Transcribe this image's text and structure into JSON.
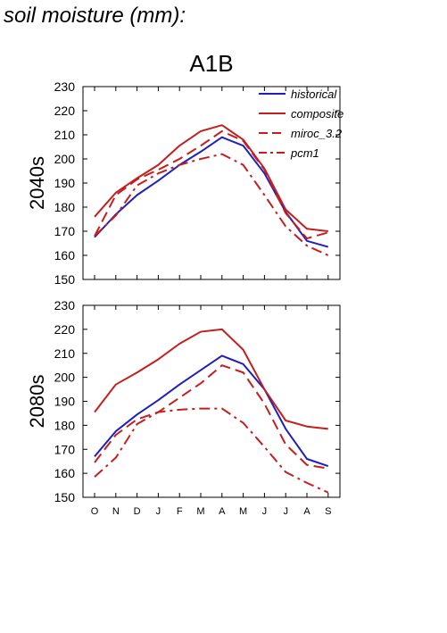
{
  "heading": "soil moisture (mm):",
  "chart_data": {
    "type": "line",
    "title": "A1B",
    "categories": [
      "O",
      "N",
      "D",
      "J",
      "F",
      "M",
      "A",
      "M",
      "J",
      "J",
      "A",
      "S"
    ],
    "ylim": [
      150,
      230
    ],
    "yticks": [
      150,
      160,
      170,
      180,
      190,
      200,
      210,
      220,
      230
    ],
    "legend_position": "top-right",
    "series_styles": [
      {
        "name": "historical",
        "color": "#1f1fbf",
        "dash": "solid"
      },
      {
        "name": "composite",
        "color": "#c41e1e",
        "dash": "solid"
      },
      {
        "name": "miroc_3.2",
        "color": "#c41e1e",
        "dash": "long-dash"
      },
      {
        "name": "pcm1",
        "color": "#c41e1e",
        "dash": "dash-dot"
      }
    ],
    "panels": [
      {
        "row_label": "2040s",
        "series": [
          {
            "name": "historical",
            "values": [
              167.5,
              177,
              185,
              191,
              197.5,
              203,
              209,
              205.5,
              194,
              178,
              166,
              163.5
            ]
          },
          {
            "name": "composite",
            "values": [
              176,
              186,
              192,
              197.5,
              205.5,
              211.5,
              214,
              208,
              196,
              179,
              171,
              170
            ]
          },
          {
            "name": "miroc_3.2",
            "values": [
              168,
              185,
              191.5,
              195.5,
              200,
              205.5,
              211.5,
              207.5,
              195.5,
              177.5,
              167,
              169.5
            ]
          },
          {
            "name": "pcm1",
            "values": [
              168,
              176.5,
              189,
              194,
              197.5,
              200,
              202,
              197.5,
              185,
              172,
              164,
              160
            ]
          }
        ]
      },
      {
        "row_label": "2080s",
        "series": [
          {
            "name": "historical",
            "values": [
              167,
              177.5,
              184.5,
              190.5,
              197,
              203,
              209,
              205.5,
              195,
              178.5,
              166,
              163
            ]
          },
          {
            "name": "composite",
            "values": [
              185.5,
              197,
              202,
              207.5,
              214,
              219,
              220,
              211.5,
              195,
              182,
              179.5,
              178.5
            ]
          },
          {
            "name": "miroc_3.2",
            "values": [
              164.5,
              176,
              182.5,
              185.5,
              191.5,
              197.5,
              205,
              202,
              189,
              172,
              163.5,
              162
            ]
          },
          {
            "name": "pcm1",
            "values": [
              158.5,
              166.5,
              180.5,
              185.5,
              186.5,
              187,
              187,
              181,
              171,
              160.5,
              156,
              152
            ]
          }
        ]
      }
    ]
  }
}
